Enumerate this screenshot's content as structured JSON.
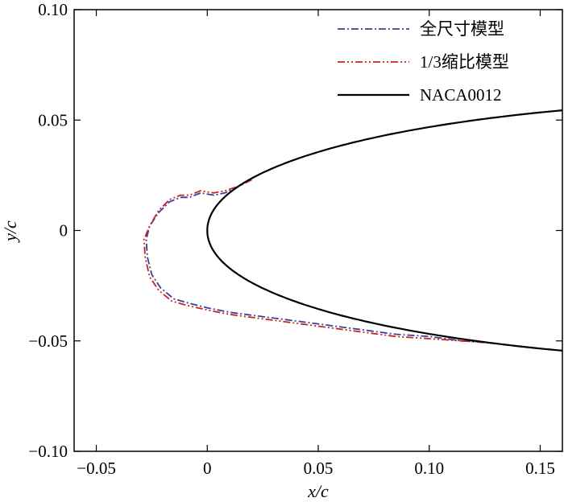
{
  "chart_data": {
    "type": "line",
    "xlabel": "x/c",
    "ylabel": "y/c",
    "xlim": [
      -0.06,
      0.16
    ],
    "ylim": [
      -0.1,
      0.1
    ],
    "x_ticks": [
      {
        "value": -0.05,
        "label": "−0.05"
      },
      {
        "value": 0,
        "label": "0"
      },
      {
        "value": 0.05,
        "label": "0.05"
      },
      {
        "value": 0.1,
        "label": "0.10"
      },
      {
        "value": 0.15,
        "label": "0.15"
      }
    ],
    "y_ticks": [
      {
        "value": 0.1,
        "label": "0.10"
      },
      {
        "value": 0.05,
        "label": "0.05"
      },
      {
        "value": 0,
        "label": "0"
      },
      {
        "value": -0.05,
        "label": "−0.05"
      },
      {
        "value": -0.1,
        "label": "−0.10"
      }
    ],
    "grid": false,
    "legend_position": "top-right",
    "series": [
      {
        "name": "全尺寸模型",
        "color": "#3a3f9a",
        "style": "dash-dot",
        "points": [
          [
            0.02,
            0.023
          ],
          [
            0.014,
            0.02
          ],
          [
            0.008,
            0.017
          ],
          [
            0.003,
            0.016
          ],
          [
            -0.003,
            0.017
          ],
          [
            -0.008,
            0.015
          ],
          [
            -0.012,
            0.015
          ],
          [
            -0.017,
            0.013
          ],
          [
            -0.022,
            0.008
          ],
          [
            -0.026,
            0.002
          ],
          [
            -0.0275,
            -0.004
          ],
          [
            -0.027,
            -0.012
          ],
          [
            -0.025,
            -0.02
          ],
          [
            -0.021,
            -0.026
          ],
          [
            -0.015,
            -0.031
          ],
          [
            -0.008,
            -0.033
          ],
          [
            0,
            -0.035
          ],
          [
            0.01,
            -0.037
          ],
          [
            0.025,
            -0.039
          ],
          [
            0.04,
            -0.041
          ],
          [
            0.055,
            -0.043
          ],
          [
            0.07,
            -0.045
          ],
          [
            0.085,
            -0.047
          ],
          [
            0.1,
            -0.048
          ],
          [
            0.115,
            -0.05
          ],
          [
            0.125,
            -0.0505
          ]
        ]
      },
      {
        "name": "1/3缩比模型",
        "color": "#c8241e",
        "style": "dash-dot-dot",
        "points": [
          [
            0.02,
            0.023
          ],
          [
            0.014,
            0.02
          ],
          [
            0.008,
            0.018
          ],
          [
            0.003,
            0.017
          ],
          [
            -0.003,
            0.018
          ],
          [
            -0.008,
            0.016
          ],
          [
            -0.012,
            0.016
          ],
          [
            -0.017,
            0.014
          ],
          [
            -0.022,
            0.009
          ],
          [
            -0.026,
            0.002
          ],
          [
            -0.0285,
            -0.004
          ],
          [
            -0.028,
            -0.012
          ],
          [
            -0.026,
            -0.021
          ],
          [
            -0.022,
            -0.027
          ],
          [
            -0.016,
            -0.032
          ],
          [
            -0.009,
            -0.034
          ],
          [
            0,
            -0.036
          ],
          [
            0.01,
            -0.038
          ],
          [
            0.025,
            -0.04
          ],
          [
            0.04,
            -0.042
          ],
          [
            0.055,
            -0.044
          ],
          [
            0.07,
            -0.046
          ],
          [
            0.085,
            -0.048
          ],
          [
            0.1,
            -0.049
          ],
          [
            0.115,
            -0.05
          ],
          [
            0.128,
            -0.051
          ]
        ]
      },
      {
        "name": "NACA0012",
        "color": "#000000",
        "style": "solid",
        "equation": "y = ±0.6·(0.2969√x − 0.1260x − 0.3516x² + 0.2843x³ − 0.1015x⁴)",
        "x_range": [
          0,
          0.16
        ]
      }
    ]
  }
}
